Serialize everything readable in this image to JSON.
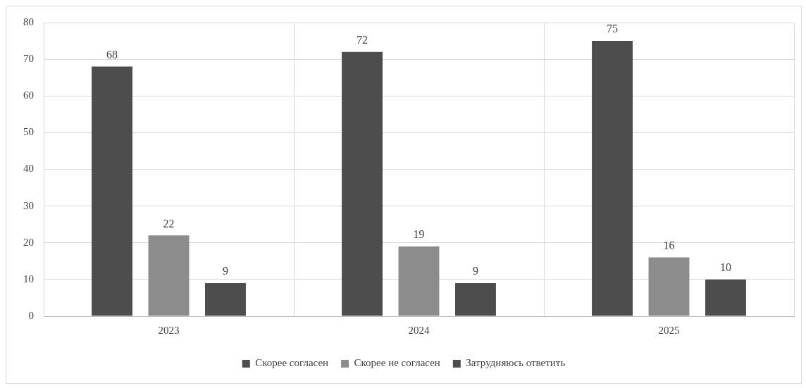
{
  "chart_data": {
    "type": "bar",
    "categories": [
      "2023",
      "2024",
      "2025"
    ],
    "series": [
      {
        "name": "Скорее согласен",
        "color": "#4d4d4d",
        "values": [
          68,
          72,
          75
        ]
      },
      {
        "name": "Скорее не согласен",
        "color": "#8c8c8c",
        "values": [
          22,
          19,
          16
        ]
      },
      {
        "name": "Затрудняюсь ответить",
        "color": "#4d4d4d",
        "values": [
          9,
          9,
          10
        ]
      }
    ],
    "ylim": [
      0,
      80
    ],
    "yticks": [
      0,
      10,
      20,
      30,
      40,
      50,
      60,
      70,
      80
    ],
    "grid": true,
    "legend": "bottom",
    "data_labels": true
  }
}
